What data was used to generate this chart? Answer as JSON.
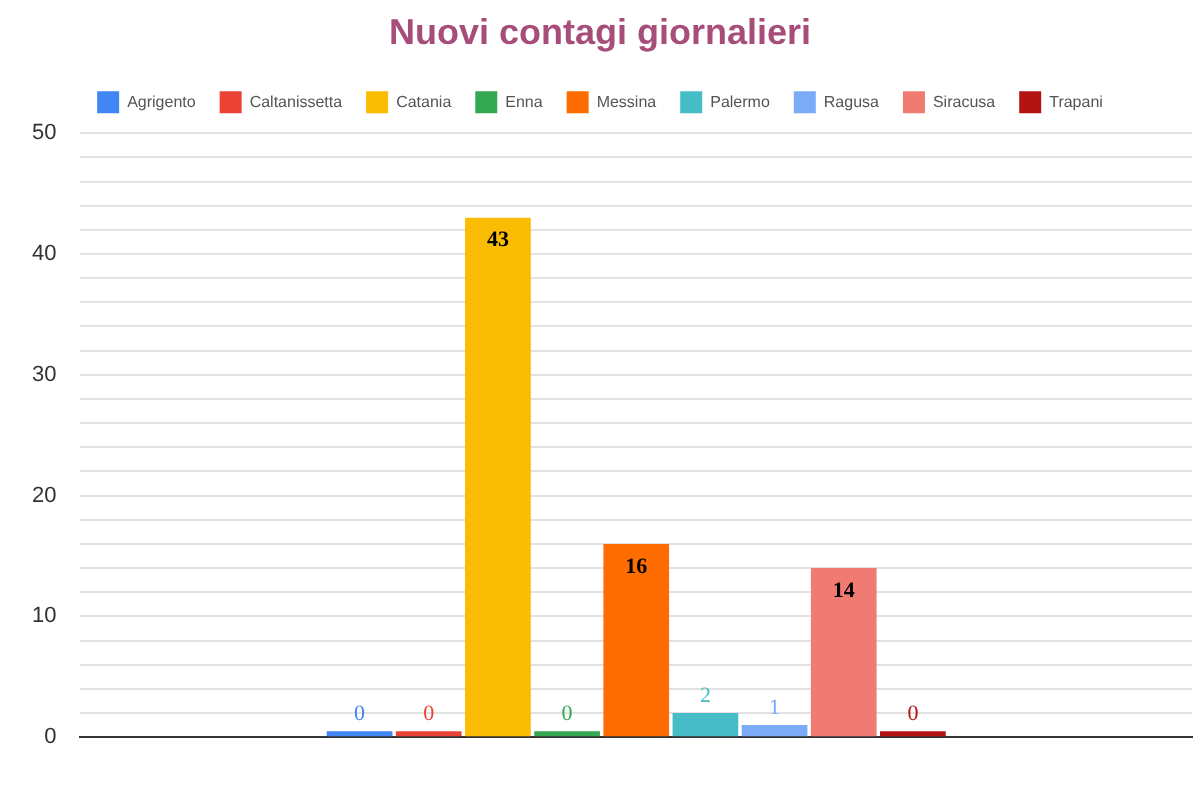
{
  "chart_data": {
    "type": "bar",
    "title": "Nuovi contagi giornalieri",
    "categories": [
      null
    ],
    "series": [
      {
        "name": "Agrigento",
        "color": "#4285f4",
        "values": [
          0
        ]
      },
      {
        "name": "Caltanissetta",
        "color": "#ea4335",
        "values": [
          0
        ]
      },
      {
        "name": "Catania",
        "color": "#fbbc04",
        "values": [
          43
        ]
      },
      {
        "name": "Enna",
        "color": "#34a853",
        "values": [
          0
        ]
      },
      {
        "name": "Messina",
        "color": "#ff6d01",
        "values": [
          16
        ]
      },
      {
        "name": "Palermo",
        "color": "#46bdc6",
        "values": [
          2
        ]
      },
      {
        "name": "Ragusa",
        "color": "#7baaf7",
        "values": [
          1
        ]
      },
      {
        "name": "Siracusa",
        "color": "#f07b72",
        "values": [
          14
        ]
      },
      {
        "name": "Trapani",
        "color": "#b31412",
        "values": [
          0
        ]
      }
    ],
    "ylim": [
      0,
      50
    ],
    "yticks": [
      0,
      {
        "value": 2,
        "label": null
      },
      {
        "value": 4,
        "label": null
      },
      {
        "value": 6,
        "label": null
      },
      {
        "value": 8,
        "label": null
      },
      10,
      {
        "value": 12,
        "label": null
      },
      {
        "value": 14,
        "label": null
      },
      {
        "value": 16,
        "label": null
      },
      {
        "value": 18,
        "label": null
      },
      20,
      {
        "value": 22,
        "label": null
      },
      {
        "value": 24,
        "label": null
      },
      {
        "value": 26,
        "label": null
      },
      {
        "value": 28,
        "label": null
      },
      30,
      {
        "value": 32,
        "label": null
      },
      {
        "value": 34,
        "label": null
      },
      {
        "value": 36,
        "label": null
      },
      {
        "value": 38,
        "label": null
      },
      40,
      {
        "value": 42,
        "label": null
      },
      {
        "value": 44,
        "label": null
      },
      {
        "value": 46,
        "label": null
      },
      {
        "value": 48,
        "label": null
      },
      50
    ],
    "grid": "y",
    "legend": "top",
    "data_labels": true
  }
}
